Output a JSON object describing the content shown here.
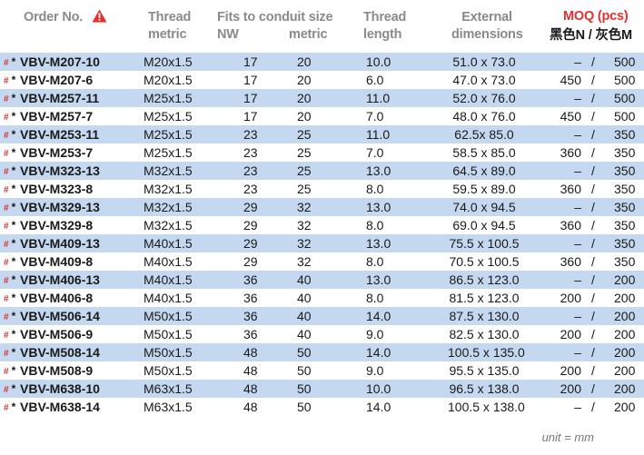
{
  "header": {
    "order_no": "Order No.",
    "thread_metric_1": "Thread",
    "thread_metric_2": "metric",
    "fits_1": "Fits to conduit size",
    "fits_nw": "NW",
    "fits_metric": "metric",
    "thread_length_1": "Thread",
    "thread_length_2": "length",
    "external_1": "External",
    "external_2": "dimensions",
    "moq_title": "MOQ (pcs)",
    "moq_sub": "黑色N / 灰色M",
    "warning_icon": "warning-triangle-icon",
    "warning_color": "#e03030"
  },
  "rows": [
    {
      "marks": "#",
      "code": "VBV-M207-10",
      "metric": "M20x1.5",
      "nw": "17",
      "metric_size": "20",
      "thread_length": "10.0",
      "external": "51.0 x 73.0",
      "moq_black": "–",
      "moq_grey": "500"
    },
    {
      "marks": "#",
      "code": "VBV-M207-6",
      "metric": "M20x1.5",
      "nw": "17",
      "metric_size": "20",
      "thread_length": "6.0",
      "external": "47.0 x 73.0",
      "moq_black": "450",
      "moq_grey": "500"
    },
    {
      "marks": "#",
      "code": "VBV-M257-11",
      "metric": "M25x1.5",
      "nw": "17",
      "metric_size": "20",
      "thread_length": "11.0",
      "external": "52.0 x 76.0",
      "moq_black": "–",
      "moq_grey": "500"
    },
    {
      "marks": "#",
      "code": "VBV-M257-7",
      "metric": "M25x1.5",
      "nw": "17",
      "metric_size": "20",
      "thread_length": "7.0",
      "external": "48.0 x 76.0",
      "moq_black": "450",
      "moq_grey": "500"
    },
    {
      "marks": "#",
      "code": "VBV-M253-11",
      "metric": "M25x1.5",
      "nw": "23",
      "metric_size": "25",
      "thread_length": "11.0",
      "external": "62.5x 85.0",
      "moq_black": "–",
      "moq_grey": "350"
    },
    {
      "marks": "#",
      "code": "VBV-M253-7",
      "metric": "M25x1.5",
      "nw": "23",
      "metric_size": "25",
      "thread_length": "7.0",
      "external": "58.5 x 85.0",
      "moq_black": "360",
      "moq_grey": "350"
    },
    {
      "marks": "#",
      "code": "VBV-M323-13",
      "metric": "M32x1.5",
      "nw": "23",
      "metric_size": "25",
      "thread_length": "13.0",
      "external": "64.5 x 89.0",
      "moq_black": "–",
      "moq_grey": "350"
    },
    {
      "marks": "#",
      "code": "VBV-M323-8",
      "metric": "M32x1.5",
      "nw": "23",
      "metric_size": "25",
      "thread_length": "8.0",
      "external": "59.5 x 89.0",
      "moq_black": "360",
      "moq_grey": "350"
    },
    {
      "marks": "#",
      "code": "VBV-M329-13",
      "metric": "M32x1.5",
      "nw": "29",
      "metric_size": "32",
      "thread_length": "13.0",
      "external": "74.0 x 94.5",
      "moq_black": "–",
      "moq_grey": "350"
    },
    {
      "marks": "#",
      "code": "VBV-M329-8",
      "metric": "M32x1.5",
      "nw": "29",
      "metric_size": "32",
      "thread_length": "8.0",
      "external": "69.0 x 94.5",
      "moq_black": "360",
      "moq_grey": "350"
    },
    {
      "marks": "#",
      "code": "VBV-M409-13",
      "metric": "M40x1.5",
      "nw": "29",
      "metric_size": "32",
      "thread_length": "13.0",
      "external": "75.5 x 100.5",
      "moq_black": "–",
      "moq_grey": "350"
    },
    {
      "marks": "#",
      "code": "VBV-M409-8",
      "metric": "M40x1.5",
      "nw": "29",
      "metric_size": "32",
      "thread_length": "8.0",
      "external": "70.5 x 100.5",
      "moq_black": "360",
      "moq_grey": "350"
    },
    {
      "marks": "#",
      "code": "VBV-M406-13",
      "metric": "M40x1.5",
      "nw": "36",
      "metric_size": "40",
      "thread_length": "13.0",
      "external": "86.5 x 123.0",
      "moq_black": "–",
      "moq_grey": "200"
    },
    {
      "marks": "#",
      "code": "VBV-M406-8",
      "metric": "M40x1.5",
      "nw": "36",
      "metric_size": "40",
      "thread_length": "8.0",
      "external": "81.5 x 123.0",
      "moq_black": "200",
      "moq_grey": "200"
    },
    {
      "marks": "#",
      "code": "VBV-M506-14",
      "metric": "M50x1.5",
      "nw": "36",
      "metric_size": "40",
      "thread_length": "14.0",
      "external": "87.5 x 130.0",
      "moq_black": "–",
      "moq_grey": "200"
    },
    {
      "marks": "#",
      "code": "VBV-M506-9",
      "metric": "M50x1.5",
      "nw": "36",
      "metric_size": "40",
      "thread_length": "9.0",
      "external": "82.5 x 130.0",
      "moq_black": "200",
      "moq_grey": "200"
    },
    {
      "marks": "#",
      "code": "VBV-M508-14",
      "metric": "M50x1.5",
      "nw": "48",
      "metric_size": "50",
      "thread_length": "14.0",
      "external": "100.5 x 135.0",
      "moq_black": "–",
      "moq_grey": "200"
    },
    {
      "marks": "#",
      "code": "VBV-M508-9",
      "metric": "M50x1.5",
      "nw": "48",
      "metric_size": "50",
      "thread_length": "9.0",
      "external": "95.5 x 135.0",
      "moq_black": "200",
      "moq_grey": "200"
    },
    {
      "marks": "#",
      "code": "VBV-M638-10",
      "metric": "M63x1.5",
      "nw": "48",
      "metric_size": "50",
      "thread_length": "10.0",
      "external": "96.5 x 138.0",
      "moq_black": "200",
      "moq_grey": "200"
    },
    {
      "marks": "#",
      "code": "VBV-M638-14",
      "metric": "M63x1.5",
      "nw": "48",
      "metric_size": "50",
      "thread_length": "14.0",
      "external": "100.5 x 138.0",
      "moq_black": "–",
      "moq_grey": "200"
    }
  ],
  "slash": "/",
  "star": "*",
  "unit_note": "unit = mm",
  "colors": {
    "row_shade": "#c4d8ef",
    "mark_red": "#e03030",
    "header_grey": "#8a8a8a"
  }
}
